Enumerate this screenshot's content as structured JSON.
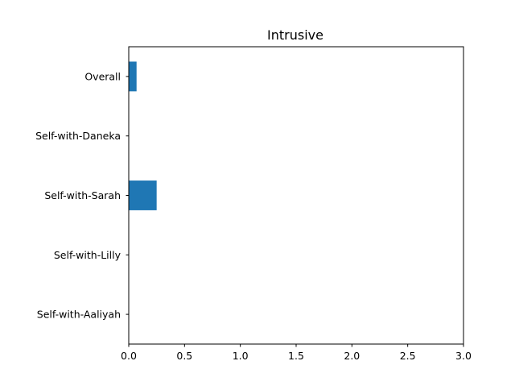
{
  "chart_data": {
    "type": "bar",
    "orientation": "horizontal",
    "title": "Intrusive",
    "xlabel": "",
    "ylabel": "",
    "categories": [
      "Overall",
      "Self-with-Daneka",
      "Self-with-Sarah",
      "Self-with-Lilly",
      "Self-with-Aaliyah"
    ],
    "values": [
      0.07,
      0.0,
      0.25,
      0.0,
      0.0
    ],
    "xlim": [
      0,
      3.0
    ],
    "xticks": [
      "0.0",
      "0.5",
      "1.0",
      "1.5",
      "2.0",
      "2.5",
      "3.0"
    ],
    "grid": false,
    "legend": "none",
    "bar_color": "#1f77b4"
  }
}
